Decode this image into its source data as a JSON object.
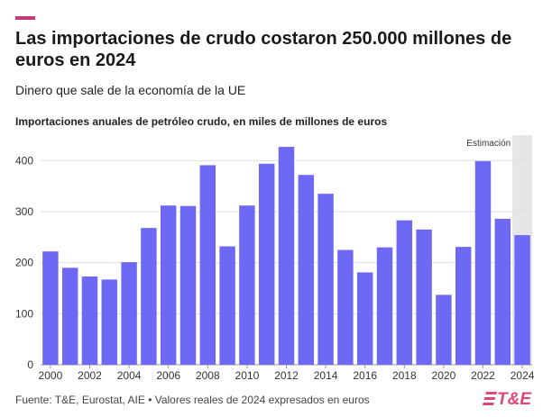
{
  "header": {
    "title": "Las importaciones de crudo costaron 250.000 millones de euros en 2024",
    "subtitle": "Dinero que sale de la economía de la UE"
  },
  "colors": {
    "accent": "#c73a7a",
    "bar": "#6e69f5",
    "estimate_band": "#e6e6e6",
    "grid": "#e0e0e0",
    "logo": "#e0457b"
  },
  "chart_data": {
    "type": "bar",
    "title": "Importaciones anuales de petróleo crudo, en miles de millones de euros",
    "categories": [
      "2000",
      "2001",
      "2002",
      "2003",
      "2004",
      "2005",
      "2006",
      "2007",
      "2008",
      "2009",
      "2010",
      "2011",
      "2012",
      "2013",
      "2014",
      "2015",
      "2016",
      "2017",
      "2018",
      "2019",
      "2020",
      "2021",
      "2022",
      "2023",
      "2024"
    ],
    "values": [
      222,
      190,
      173,
      167,
      201,
      268,
      312,
      311,
      391,
      232,
      312,
      394,
      427,
      372,
      335,
      225,
      181,
      230,
      283,
      265,
      137,
      231,
      399,
      286,
      254
    ],
    "x_tick_labels": [
      "2000",
      "2002",
      "2004",
      "2006",
      "2008",
      "2010",
      "2012",
      "2014",
      "2016",
      "2018",
      "2020",
      "2022",
      "2024"
    ],
    "y_ticks": [
      0,
      100,
      200,
      300,
      400
    ],
    "ylim": [
      0,
      450
    ],
    "grid": true,
    "annotation": {
      "label": "Estimación",
      "category": "2024"
    }
  },
  "footer": {
    "source": "Fuente: T&E, Eurostat, AIE • Valores reales de 2024 expresados en euros",
    "logo": "T&E"
  }
}
